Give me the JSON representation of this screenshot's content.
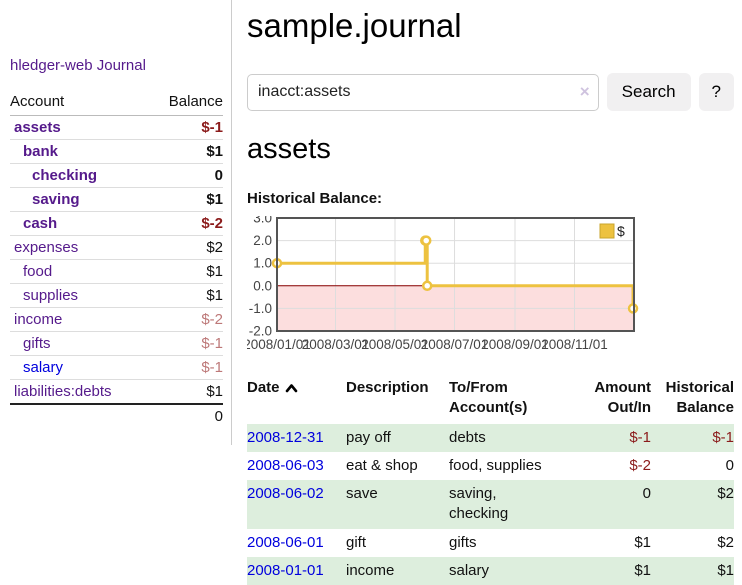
{
  "sidebar": {
    "brand": "hledger-web",
    "nav_journal": "Journal",
    "accounts_header": {
      "account": "Account",
      "balance": "Balance"
    },
    "accounts": [
      {
        "name": "assets",
        "indent": 0,
        "bold": true,
        "balance": "$-1",
        "tone": "neg",
        "link": "purple"
      },
      {
        "name": "bank",
        "indent": 1,
        "bold": true,
        "balance": "$1",
        "tone": "pos",
        "link": "purple"
      },
      {
        "name": "checking",
        "indent": 2,
        "bold": true,
        "balance": "0",
        "tone": "pos",
        "link": "purple"
      },
      {
        "name": "saving",
        "indent": 2,
        "bold": true,
        "balance": "$1",
        "tone": "pos",
        "link": "purple"
      },
      {
        "name": "cash",
        "indent": 1,
        "bold": true,
        "balance": "$-2",
        "tone": "neg",
        "link": "purple"
      },
      {
        "name": "expenses",
        "indent": 0,
        "bold": false,
        "balance": "$2",
        "tone": "pos",
        "link": "purple"
      },
      {
        "name": "food",
        "indent": 1,
        "bold": false,
        "balance": "$1",
        "tone": "pos",
        "link": "purple"
      },
      {
        "name": "supplies",
        "indent": 1,
        "bold": false,
        "balance": "$1",
        "tone": "pos",
        "link": "purple"
      },
      {
        "name": "income",
        "indent": 0,
        "bold": false,
        "balance": "$-2",
        "tone": "negm",
        "link": "purple"
      },
      {
        "name": "gifts",
        "indent": 1,
        "bold": false,
        "balance": "$-1",
        "tone": "negm",
        "link": "purple"
      },
      {
        "name": "salary",
        "indent": 1,
        "bold": false,
        "balance": "$-1",
        "tone": "negm",
        "link": "blue"
      },
      {
        "name": "liabilities:debts",
        "indent": 0,
        "bold": false,
        "balance": "$1",
        "tone": "pos",
        "link": "purple"
      }
    ],
    "total": "0"
  },
  "main": {
    "title": "sample.journal",
    "search": {
      "value": "inacct:assets",
      "clear_icon": "×",
      "button_label": "Search",
      "help_label": "?"
    },
    "account_heading": "assets",
    "chart_label": "Historical Balance:"
  },
  "chart_data": {
    "type": "line",
    "step": true,
    "title": "Historical Balance",
    "series": [
      {
        "name": "$",
        "color": "#edc240",
        "x": [
          "2008-01-01",
          "2008-06-01",
          "2008-06-02",
          "2008-06-03",
          "2008-12-31"
        ],
        "values": [
          1,
          2,
          2,
          0,
          -1
        ]
      }
    ],
    "xlim": [
      "2008-01-01",
      "2009-01-01"
    ],
    "ylim": [
      -2,
      3
    ],
    "xticks": [
      "2008/01/01",
      "2008/03/01",
      "2008/05/01",
      "2008/07/01",
      "2008/09/01",
      "2008/11/01"
    ],
    "yticks": [
      "3.0",
      "2.0",
      "1.0",
      "0.0",
      "-1.0",
      "-2.0"
    ],
    "legend": {
      "position": "top-right",
      "label": "$"
    },
    "grid": true,
    "colors": {
      "grid": "#dddddd",
      "border": "#545454",
      "zero_line": "#8b0000",
      "negative_region": "#fcdede",
      "marker_fill": "#ffffff",
      "tick_text": "#444444"
    }
  },
  "register": {
    "headers": {
      "date": "Date",
      "description": "Description",
      "accounts": "To/From Account(s)",
      "amount": "Amount Out/In",
      "balance": "Historical Balance"
    },
    "rows": [
      {
        "date": "2008-12-31",
        "description": "pay off",
        "accounts": "debts",
        "amount": "$-1",
        "amount_neg": true,
        "balance": "$-1",
        "balance_neg": true
      },
      {
        "date": "2008-06-03",
        "description": "eat & shop",
        "accounts": "food, supplies",
        "amount": "$-2",
        "amount_neg": true,
        "balance": "0",
        "balance_neg": false
      },
      {
        "date": "2008-06-02",
        "description": "save",
        "accounts": "saving, checking",
        "amount": "0",
        "amount_neg": false,
        "balance": "$2",
        "balance_neg": false
      },
      {
        "date": "2008-06-01",
        "description": "gift",
        "accounts": "gifts",
        "amount": "$1",
        "amount_neg": false,
        "balance": "$2",
        "balance_neg": false
      },
      {
        "date": "2008-01-01",
        "description": "income",
        "accounts": "salary",
        "amount": "$1",
        "amount_neg": false,
        "balance": "$1",
        "balance_neg": false
      }
    ]
  }
}
